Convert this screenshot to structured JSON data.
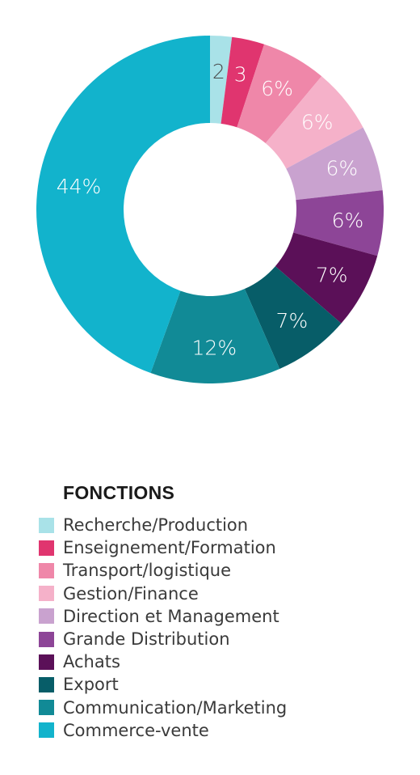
{
  "chart_data": {
    "type": "pie",
    "style": "donut",
    "legend_title": "FONCTIONS",
    "legend_position": "bottom-left",
    "slices": [
      {
        "name": "Recherche/Production",
        "value": 2,
        "label": "2",
        "color": "#a9e2e8",
        "label_color": "#4a4a4a"
      },
      {
        "name": "Enseignement/Formation",
        "value": 3,
        "label": "3",
        "color": "#e0356f",
        "label_color": "#ffffff"
      },
      {
        "name": "Transport/logistique",
        "value": 6,
        "label": "6%",
        "color": "#ef87a9",
        "label_color": "#ffffff"
      },
      {
        "name": "Gestion/Finance",
        "value": 6,
        "label": "6%",
        "color": "#f5b1c9",
        "label_color": "#ffffff"
      },
      {
        "name": "Direction et Management",
        "value": 6,
        "label": "6%",
        "color": "#c9a2cf",
        "label_color": "#ffffff"
      },
      {
        "name": "Grande Distribution",
        "value": 6,
        "label": "6%",
        "color": "#8d4597",
        "label_color": "#ffffff"
      },
      {
        "name": "Achats",
        "value": 7,
        "label": "7%",
        "color": "#5b1058",
        "label_color": "#ffffff"
      },
      {
        "name": "Export",
        "value": 7,
        "label": "7%",
        "color": "#075d68",
        "label_color": "#ffffff"
      },
      {
        "name": "Communication/Marketing",
        "value": 12,
        "label": "12%",
        "color": "#118a96",
        "label_color": "#ffffff"
      },
      {
        "name": "Commerce-vente",
        "value": 44,
        "label": "44%",
        "color": "#12b3cc",
        "label_color": "#ffffff"
      }
    ]
  }
}
